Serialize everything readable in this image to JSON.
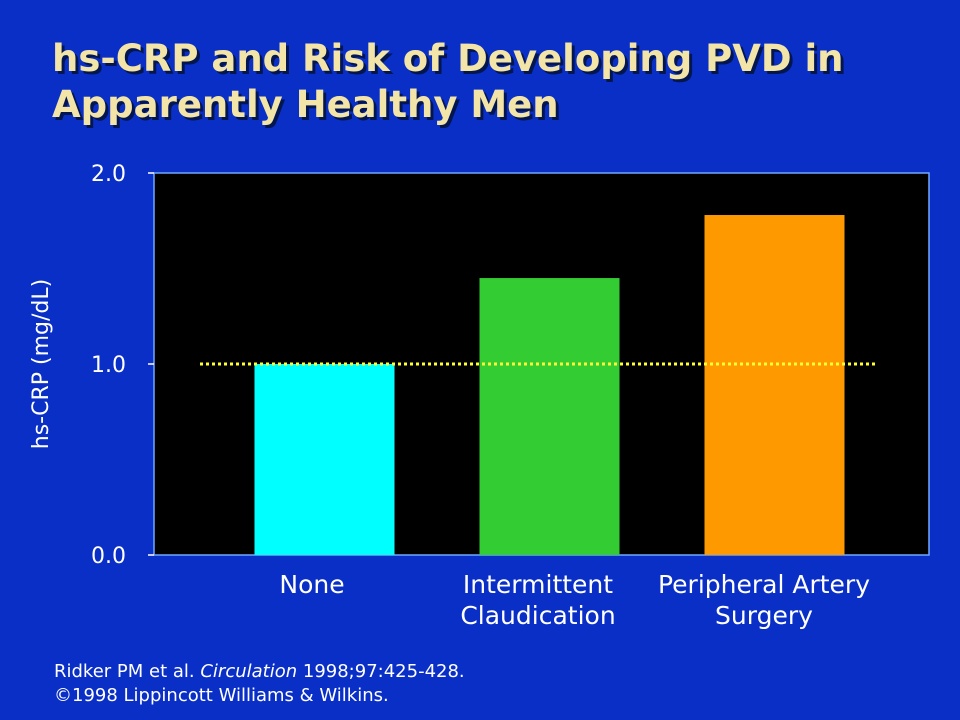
{
  "title_lines": [
    "hs-CRP and Risk of Developing PVD in",
    "Apparently Healthy Men"
  ],
  "citation": {
    "authors": "Ridker PM et al. ",
    "journal": "Circulation",
    "details": " 1998;97:425-428.",
    "copyright": "©1998 Lippincott Williams & Wilkins."
  },
  "colors": {
    "background": "#0a2fc7",
    "plot_background": "#000000",
    "title": "#f3e4a8",
    "reference_line": "#ffff33"
  },
  "chart_data": {
    "type": "bar",
    "categories": [
      [
        "None"
      ],
      [
        "Intermittent",
        "Claudication"
      ],
      [
        "Peripheral Artery",
        "Surgery"
      ]
    ],
    "values": [
      1.0,
      1.45,
      1.78
    ],
    "bar_colors": [
      "#00ffff",
      "#33cc33",
      "#ff9900"
    ],
    "ylabel": "hs-CRP (mg/dL)",
    "ylim": [
      0,
      2.0
    ],
    "yticks": [
      "0.0",
      "1.0",
      "2.0"
    ],
    "ytick_values": [
      0,
      1.0,
      2.0
    ],
    "reference_line": 1.0,
    "grid": false
  }
}
